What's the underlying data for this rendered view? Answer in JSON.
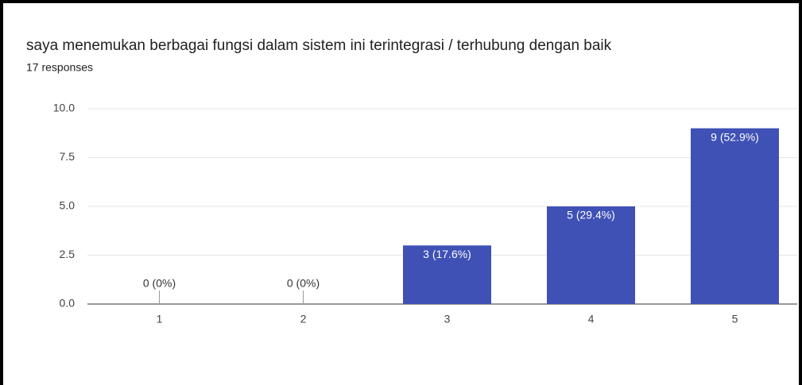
{
  "chart_data": {
    "type": "bar",
    "title": "saya menemukan berbagai fungsi dalam sistem ini terintegrasi / terhubung dengan baik",
    "subtitle": "17 responses",
    "categories": [
      "1",
      "2",
      "3",
      "4",
      "5"
    ],
    "values": [
      0,
      0,
      3,
      5,
      9
    ],
    "value_labels": [
      "0 (0%)",
      "0 (0%)",
      "3 (17.6%)",
      "5 (29.4%)",
      "9 (52.9%)"
    ],
    "color": "#3f51b5",
    "ylim": [
      0,
      10
    ],
    "yticks": [
      {
        "value": 0,
        "label": "0.0"
      },
      {
        "value": 2.5,
        "label": "2.5"
      },
      {
        "value": 5,
        "label": "5.0"
      },
      {
        "value": 7.5,
        "label": "7.5"
      },
      {
        "value": 10,
        "label": "10.0"
      }
    ],
    "grid": true
  }
}
